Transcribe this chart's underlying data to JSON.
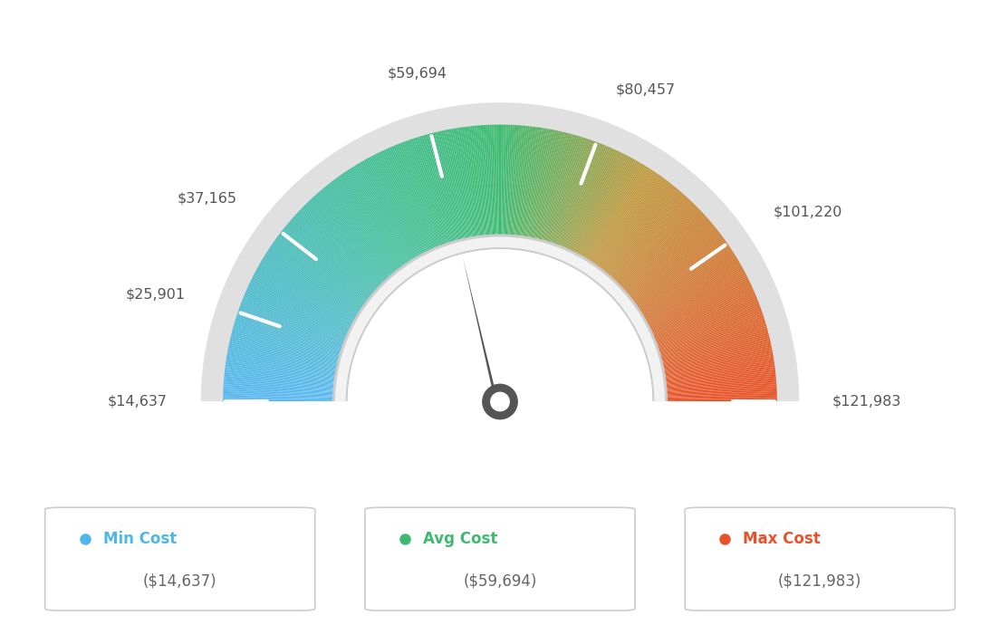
{
  "min_val": 14637,
  "max_val": 121983,
  "avg_val": 59694,
  "tick_labels": [
    "$14,637",
    "$25,901",
    "$37,165",
    "$59,694",
    "$80,457",
    "$101,220",
    "$121,983"
  ],
  "tick_values": [
    14637,
    25901,
    37165,
    59694,
    80457,
    101220,
    121983
  ],
  "legend_items": [
    {
      "label": "Min Cost",
      "value": "($14,637)",
      "color": "#4db8e8"
    },
    {
      "label": "Avg Cost",
      "value": "($59,694)",
      "color": "#3dba6f"
    },
    {
      "label": "Max Cost",
      "value": "($121,983)",
      "color": "#e8522a"
    }
  ],
  "bg_color": "#ffffff",
  "needle_color": "#555555",
  "color_stops": [
    [
      0.0,
      [
        0.35,
        0.72,
        0.94
      ]
    ],
    [
      0.3,
      [
        0.27,
        0.75,
        0.62
      ]
    ],
    [
      0.5,
      [
        0.24,
        0.73,
        0.44
      ]
    ],
    [
      0.68,
      [
        0.75,
        0.6,
        0.25
      ]
    ],
    [
      1.0,
      [
        0.91,
        0.32,
        0.16
      ]
    ]
  ]
}
